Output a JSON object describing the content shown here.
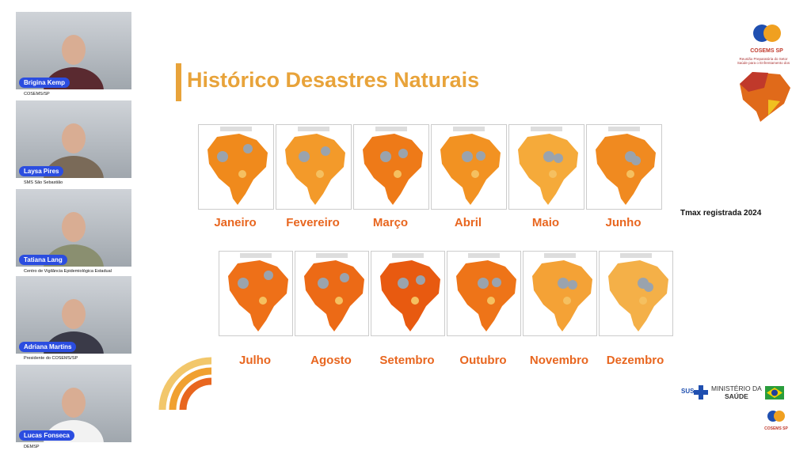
{
  "participants": [
    {
      "name": "Brigina Kemp",
      "role": "COSEMS/SP"
    },
    {
      "name": "Laysa Pires",
      "role": "SMS São Sebastião"
    },
    {
      "name": "Tatiana Lang",
      "role": "Centro de Vigilância Epidemiológica Estadual"
    },
    {
      "name": "Adriana Martins",
      "role": "Presidente do COSEMS/SP"
    },
    {
      "name": "Lucas Fonseca",
      "role": "DEMSP"
    }
  ],
  "slide": {
    "title": "Histórico Desastres Naturais",
    "months_row1": [
      "Janeiro",
      "Fevereiro",
      "Março",
      "Abril",
      "Maio",
      "Junho"
    ],
    "months_row2": [
      "Julho",
      "Agosto",
      "Setembro",
      "Outubro",
      "Novembro",
      "Dezembro"
    ],
    "legend": "Tmax registrada 2024",
    "side_caption": "Reunião Preparatória do Setor Saúde para o Enfrentamento dos"
  },
  "logos": {
    "cosems": "COSEMS SP",
    "ministry_line1": "MINISTÉRIO DA",
    "ministry_line2": "SAÚDE",
    "sus": "SUS",
    "cosems_small": "COSEMS SP"
  }
}
